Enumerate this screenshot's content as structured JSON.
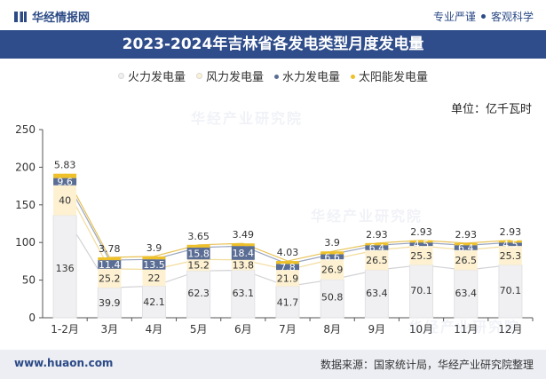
{
  "header": {
    "brand": "华经情报网",
    "slogan_left": "专业严谨",
    "slogan_right": "客观科学"
  },
  "title": "2023-2024年吉林省各发电类型月度发电量",
  "unit": "单位：亿千瓦时",
  "footer": {
    "url": "www.huaon.com",
    "source": "数据来源：国家统计局，华经产业研究院整理"
  },
  "watermarks": [
    "华经产业研究院",
    "华经产业研究院",
    "华经产业研究院"
  ],
  "colors": {
    "thermal": "#f0f0f2",
    "wind": "#fdf1d2",
    "hydro": "#5a6d94",
    "solar": "#eec12b",
    "title_bar": "#2f4d8a"
  },
  "chart_data": {
    "type": "bar",
    "stacked": true,
    "categories": [
      "1-2月",
      "3月",
      "4月",
      "5月",
      "6月",
      "7月",
      "8月",
      "9月",
      "10月",
      "11月",
      "12月"
    ],
    "series": [
      {
        "name": "火力发电量",
        "color": "#f0f0f2",
        "values": [
          136,
          39.9,
          42.1,
          62.3,
          63.1,
          41.7,
          50.8,
          63.4,
          70.1,
          63.4,
          70.1
        ]
      },
      {
        "name": "风力发电量",
        "color": "#fdf1d2",
        "values": [
          40,
          25.2,
          22,
          15.2,
          13.8,
          21.9,
          26.9,
          26.5,
          25.3,
          26.5,
          25.3
        ]
      },
      {
        "name": "水力发电量",
        "color": "#5a6d94",
        "values": [
          9.6,
          11.4,
          13.5,
          15.8,
          18.4,
          7.8,
          6.6,
          6.4,
          4.5,
          6.4,
          4.5
        ]
      },
      {
        "name": "太阳能发电量",
        "color": "#eec12b",
        "values": [
          5.83,
          3.78,
          3.9,
          3.65,
          3.49,
          4.03,
          3.9,
          2.93,
          2.93,
          2.93,
          2.93
        ]
      }
    ],
    "ylim": [
      0,
      250
    ],
    "yticks": [
      0,
      50,
      100,
      150,
      200,
      250
    ],
    "legend_position": "top-center",
    "grid": false
  }
}
